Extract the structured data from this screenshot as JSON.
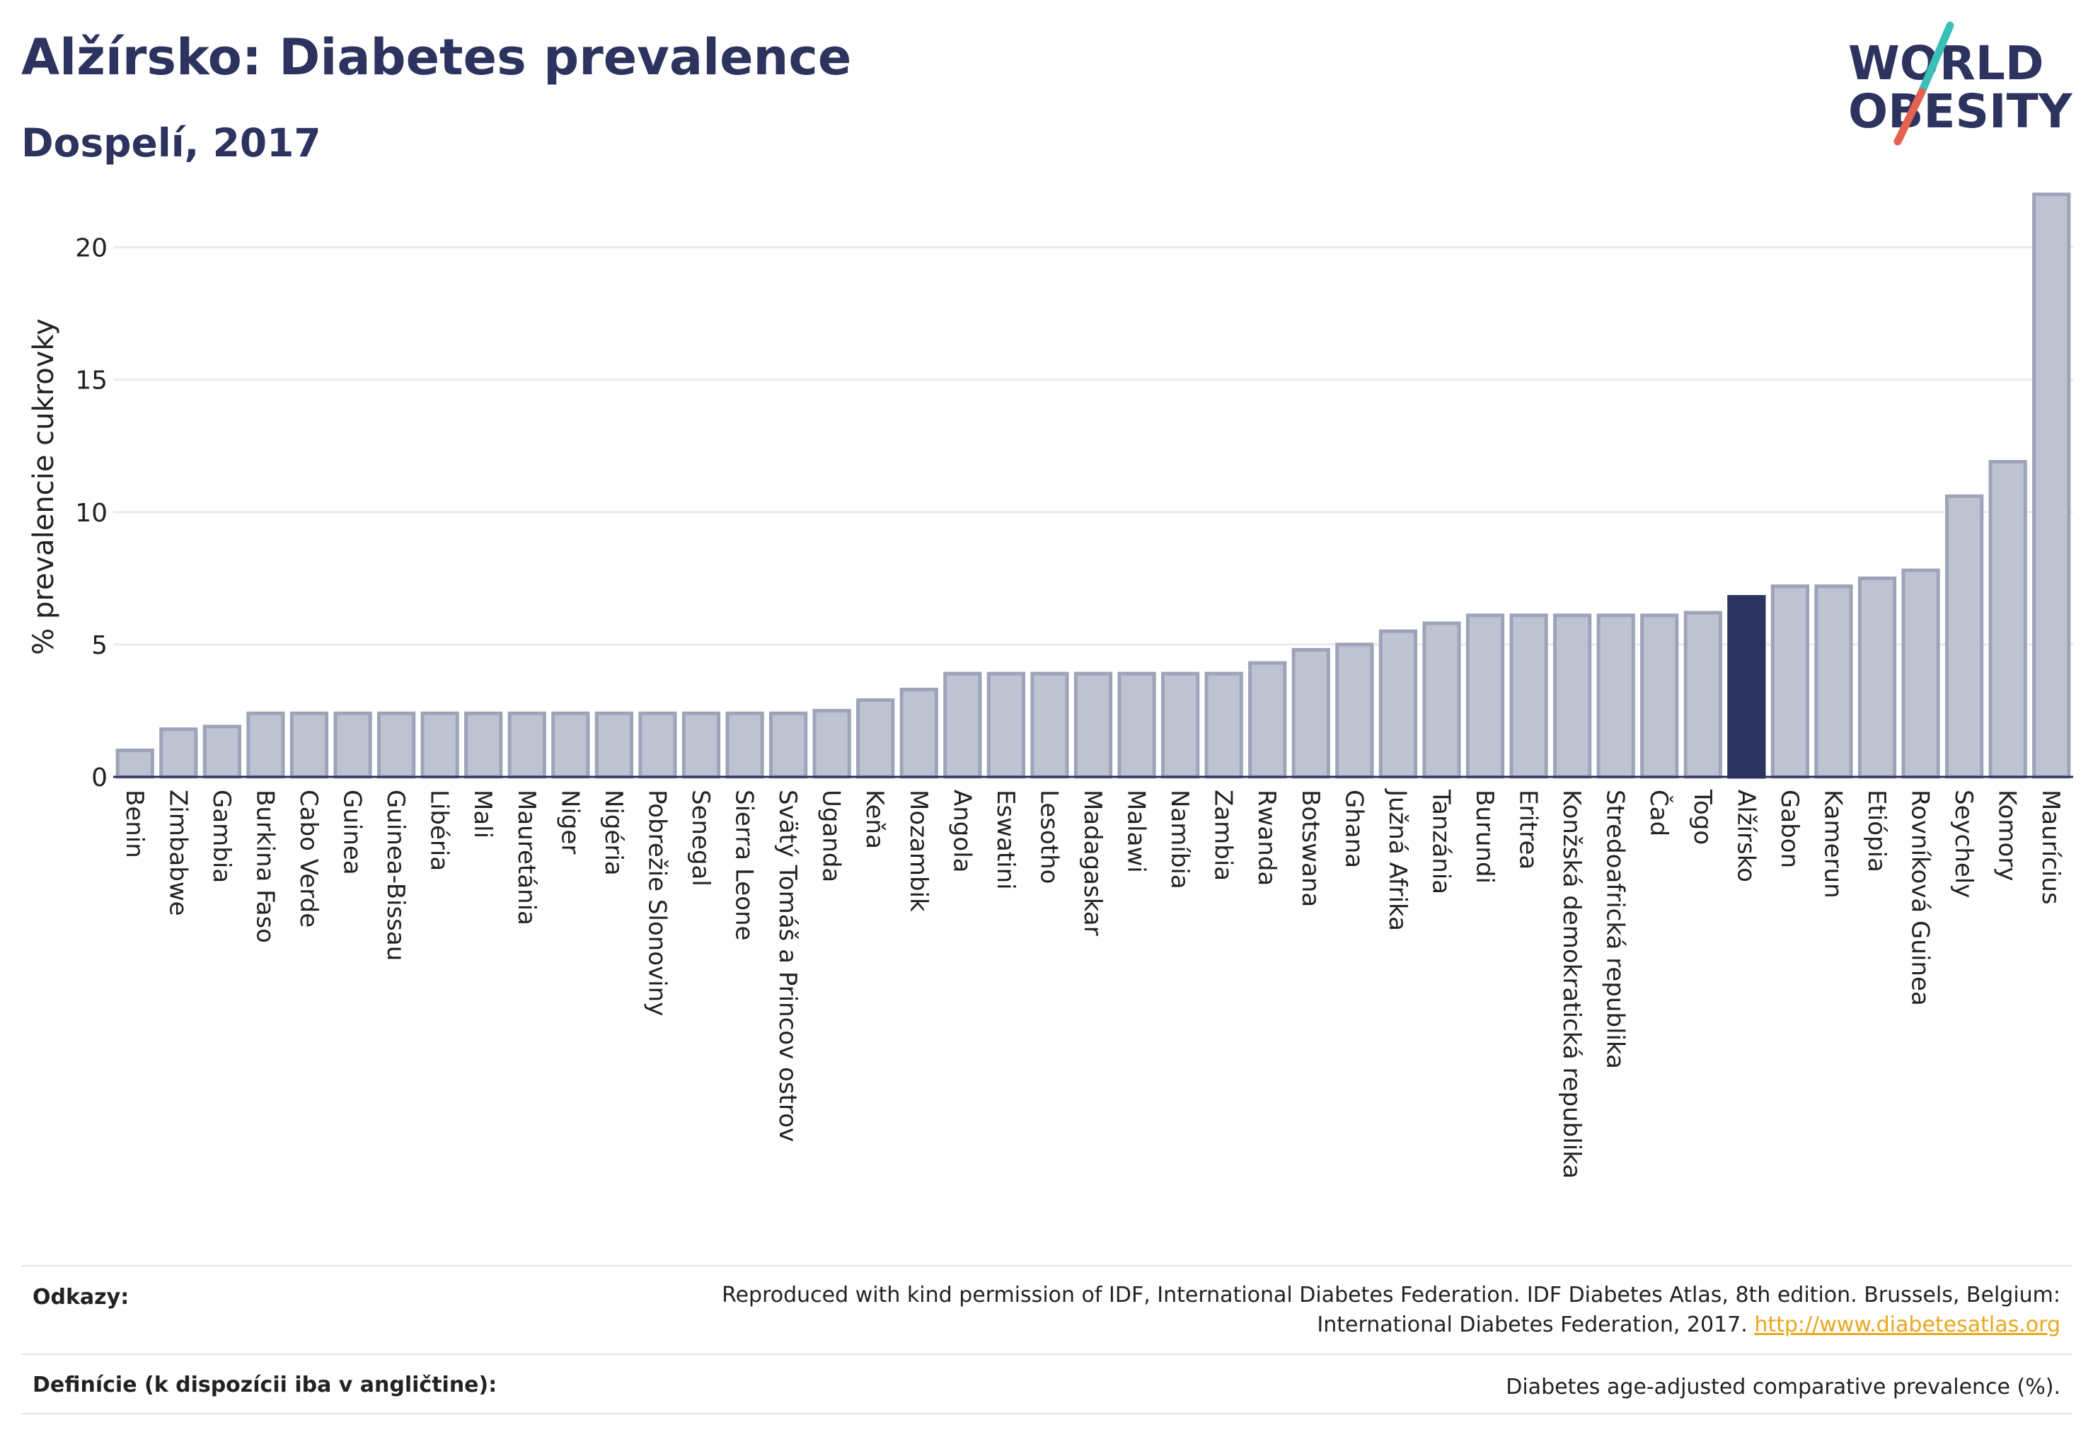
{
  "header": {
    "title": "Alžírsko: Diabetes prevalence",
    "subtitle": "Dospelí, 2017"
  },
  "logo": {
    "line1": "WORLD",
    "line2": "OBESITY",
    "icon": "world-obesity-logo"
  },
  "chart_data": {
    "type": "bar",
    "ylabel": "% prevalencie cukrovky",
    "ylim": [
      0,
      22.5
    ],
    "yticks": [
      0,
      5,
      10,
      15,
      20
    ],
    "grid": true,
    "highlight": "Alžírsko",
    "colors": {
      "bar": "#bfc3d1",
      "bar_edge": "#9da3b9",
      "highlight": "#2b335e",
      "grid": "#e8eaef"
    },
    "categories": [
      "Benin",
      "Zimbabwe",
      "Gambia",
      "Burkina Faso",
      "Cabo Verde",
      "Guinea",
      "Guinea-Bissau",
      "Libéria",
      "Mali",
      "Mauretánia",
      "Niger",
      "Nigéria",
      "Pobrežie Slonoviny",
      "Senegal",
      "Sierra Leone",
      "Svätý Tomáš a Princov ostrov",
      "Uganda",
      "Keňa",
      "Mozambik",
      "Angola",
      "Eswatini",
      "Lesotho",
      "Madagaskar",
      "Malawi",
      "Namíbia",
      "Zambia",
      "Rwanda",
      "Botswana",
      "Ghana",
      "Južná Afrika",
      "Tanzánia",
      "Burundi",
      "Eritrea",
      "Konžská demokratická republika",
      "Stredoafrická republika",
      "Čad",
      "Togo",
      "Alžírsko",
      "Gabon",
      "Kamerun",
      "Etiópia",
      "Rovníková Guinea",
      "Seychely",
      "Komory",
      "Maurícius"
    ],
    "values": [
      1.0,
      1.8,
      1.9,
      2.4,
      2.4,
      2.4,
      2.4,
      2.4,
      2.4,
      2.4,
      2.4,
      2.4,
      2.4,
      2.4,
      2.4,
      2.4,
      2.5,
      2.9,
      3.3,
      3.9,
      3.9,
      3.9,
      3.9,
      3.9,
      3.9,
      3.9,
      4.3,
      4.8,
      5.0,
      5.5,
      5.8,
      6.1,
      6.1,
      6.1,
      6.1,
      6.1,
      6.2,
      6.8,
      7.2,
      7.2,
      7.5,
      7.8,
      10.6,
      11.9,
      22.0
    ]
  },
  "footer": {
    "references_label": "Odkazy:",
    "references_text_1": "Reproduced with kind permission of IDF, International Diabetes Federation. IDF Diabetes Atlas, 8th edition. Brussels, Belgium:",
    "references_text_2": "International Diabetes Federation, 2017.",
    "references_link": "http://www.diabetesatlas.org",
    "definitions_label": "Definície (k dispozícii iba v angličtine):",
    "definitions_text": "Diabetes age-adjusted comparative prevalence (%)."
  }
}
